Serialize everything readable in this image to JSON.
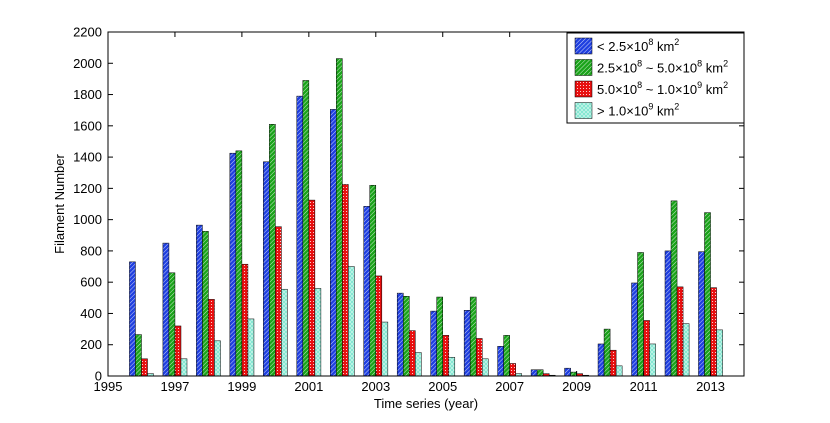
{
  "chart_data": {
    "type": "bar",
    "xlabel": "Time series (year)",
    "ylabel": "Filament Number",
    "xlim": [
      1995,
      2014
    ],
    "ylim": [
      0,
      2200
    ],
    "x_ticks": [
      "1995",
      "1997",
      "1999",
      "2001",
      "2003",
      "2005",
      "2007",
      "2009",
      "2011",
      "2013"
    ],
    "y_ticks": [
      "0",
      "200",
      "400",
      "600",
      "800",
      "1000",
      "1200",
      "1400",
      "1600",
      "1800",
      "2000",
      "2200"
    ],
    "categories": [
      1996,
      1997,
      1998,
      1999,
      2000,
      2001,
      2002,
      2003,
      2004,
      2005,
      2006,
      2007,
      2008,
      2009,
      2010,
      2011,
      2012,
      2013
    ],
    "grid": false,
    "legend_position": "top-right",
    "series": [
      {
        "legend": {
          "prefix": "< 2.5×10",
          "sup1": "8",
          "mid": " km",
          "sup2": "2",
          "mid2": "",
          "sup3": "",
          "tail": ""
        },
        "color": "#1f3fe0",
        "pattern": "hatch",
        "values": [
          730,
          850,
          965,
          1425,
          1370,
          1790,
          1705,
          1085,
          530,
          415,
          420,
          190,
          40,
          50,
          205,
          595,
          800,
          795
        ]
      },
      {
        "legend": {
          "prefix": "2.5×10",
          "sup1": "8",
          "mid": " ~ 5.0×10",
          "sup2": "8",
          "mid2": " km",
          "sup3": "2",
          "tail": ""
        },
        "color": "#1aa31a",
        "pattern": "hatch",
        "values": [
          265,
          660,
          925,
          1440,
          1610,
          1890,
          2030,
          1220,
          510,
          505,
          505,
          260,
          40,
          25,
          300,
          790,
          1120,
          1045
        ]
      },
      {
        "legend": {
          "prefix": "5.0×10",
          "sup1": "8",
          "mid": " ~ 1.0×10",
          "sup2": "9",
          "mid2": " km",
          "sup3": "2",
          "tail": ""
        },
        "color": "#e81010",
        "pattern": "dots",
        "values": [
          110,
          320,
          490,
          715,
          955,
          1125,
          1225,
          640,
          290,
          260,
          240,
          80,
          15,
          15,
          165,
          355,
          570,
          565
        ]
      },
      {
        "legend": {
          "prefix": "> 1.0×10",
          "sup1": "9",
          "mid": " km",
          "sup2": "2",
          "mid2": "",
          "sup3": "",
          "tail": ""
        },
        "color": "#7fe6cf",
        "pattern": "cross",
        "values": [
          15,
          110,
          225,
          365,
          555,
          560,
          700,
          345,
          150,
          120,
          110,
          15,
          5,
          5,
          65,
          205,
          335,
          295
        ]
      }
    ]
  }
}
